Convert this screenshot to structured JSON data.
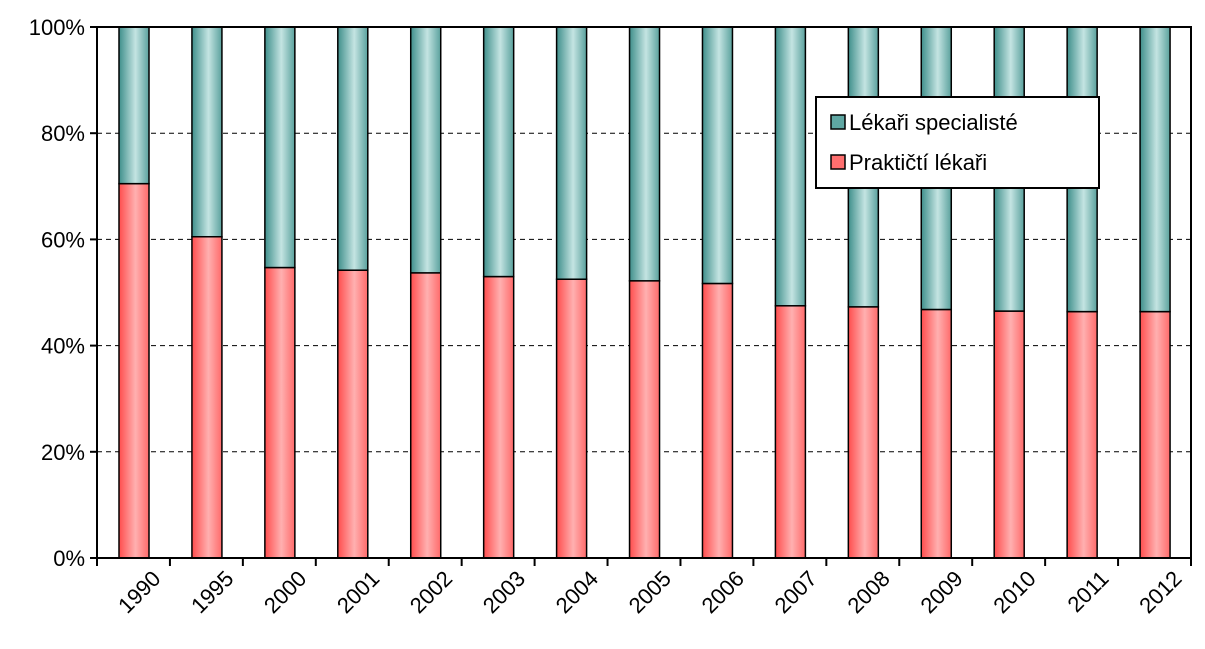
{
  "chart_data": {
    "type": "bar",
    "stacked": true,
    "percent": true,
    "categories": [
      "1990",
      "1995",
      "2000",
      "2001",
      "2002",
      "2003",
      "2004",
      "2005",
      "2006",
      "2007",
      "2008",
      "2009",
      "2010",
      "2011",
      "2012"
    ],
    "series": [
      {
        "name": "Praktičtí lékaři",
        "values": [
          70.5,
          60.5,
          54.7,
          54.2,
          53.7,
          53.0,
          52.5,
          52.2,
          51.7,
          47.5,
          47.3,
          46.8,
          46.5,
          46.4,
          46.4
        ],
        "color": "#ff6f6f"
      },
      {
        "name": "Lékaři specialisté",
        "values": [
          29.5,
          39.5,
          45.3,
          45.8,
          46.3,
          47.0,
          47.5,
          47.8,
          48.3,
          52.5,
          52.7,
          53.2,
          53.5,
          53.6,
          53.6
        ],
        "color": "#5fa7a3"
      }
    ],
    "ylim": [
      0,
      100
    ],
    "yticks": [
      "0%",
      "20%",
      "40%",
      "60%",
      "80%",
      "100%"
    ],
    "grid": "dashed horizontal",
    "legend_position": "top-right",
    "title": "",
    "xlabel": "",
    "ylabel": ""
  }
}
